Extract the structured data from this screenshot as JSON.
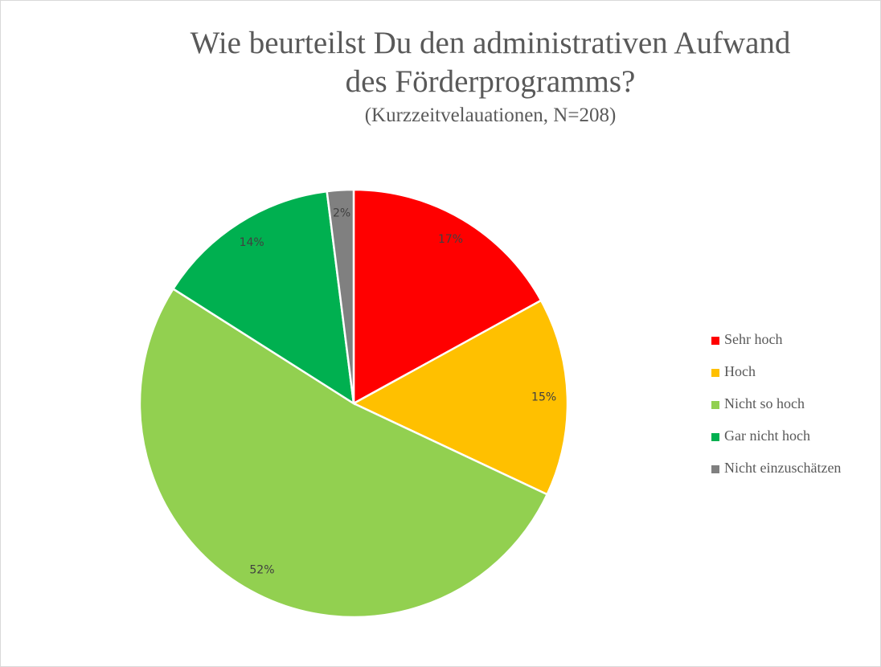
{
  "chart_data": {
    "type": "pie",
    "title": "Wie beurteilst Du den administrativen Aufwand des Förderprogramms?",
    "subtitle": "(Kurzzeitvelauationen, N=208)",
    "categories": [
      "Sehr hoch",
      "Hoch",
      "Nicht so hoch",
      "Gar nicht hoch",
      "Nicht einzuschätzen"
    ],
    "values": [
      17,
      15,
      52,
      14,
      2
    ],
    "value_labels": [
      "17%",
      "15%",
      "52%",
      "14%",
      "2%"
    ],
    "colors": [
      "#ff0000",
      "#ffc000",
      "#92d050",
      "#00b050",
      "#808080"
    ],
    "legend": "right"
  }
}
